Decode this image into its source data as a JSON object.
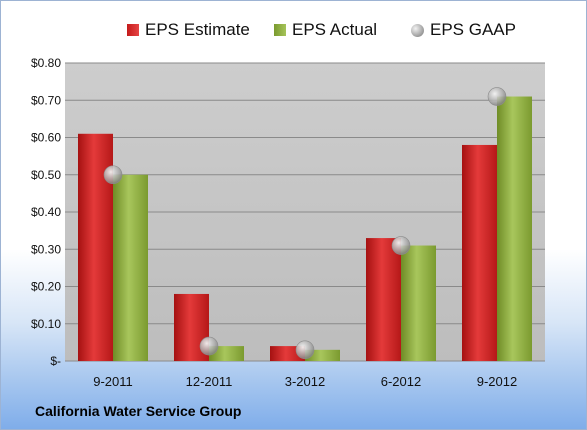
{
  "footer": {
    "company": "California Water Service Group"
  },
  "legend": [
    {
      "label": "EPS Estimate",
      "swatch": "red"
    },
    {
      "label": "EPS Actual",
      "swatch": "green"
    },
    {
      "label": "EPS GAAP",
      "swatch": "gaap"
    }
  ],
  "colors": {
    "estimate": "#d22a2a",
    "actual": "#94b84a",
    "gaap": "#a8a8a8",
    "plot_bg": "#c4c4c4"
  },
  "chart_data": {
    "type": "bar",
    "categories": [
      "9-2011",
      "12-2011",
      "3-2012",
      "6-2012",
      "9-2012"
    ],
    "series": [
      {
        "name": "EPS Estimate",
        "values": [
          0.61,
          0.18,
          0.04,
          0.33,
          0.58
        ]
      },
      {
        "name": "EPS Actual",
        "values": [
          0.5,
          0.04,
          0.03,
          0.31,
          0.71
        ]
      },
      {
        "name": "EPS GAAP",
        "values": [
          0.5,
          0.04,
          0.03,
          0.31,
          0.71
        ],
        "style": "marker"
      }
    ],
    "ylim": [
      0,
      0.8
    ],
    "yticks": [
      0,
      0.1,
      0.2,
      0.3,
      0.4,
      0.5,
      0.6,
      0.7,
      0.8
    ],
    "yticklabels": [
      "$-",
      "$0.10",
      "$0.20",
      "$0.30",
      "$0.40",
      "$0.50",
      "$0.60",
      "$0.70",
      "$0.80"
    ],
    "grid": true,
    "legend_position": "top"
  }
}
